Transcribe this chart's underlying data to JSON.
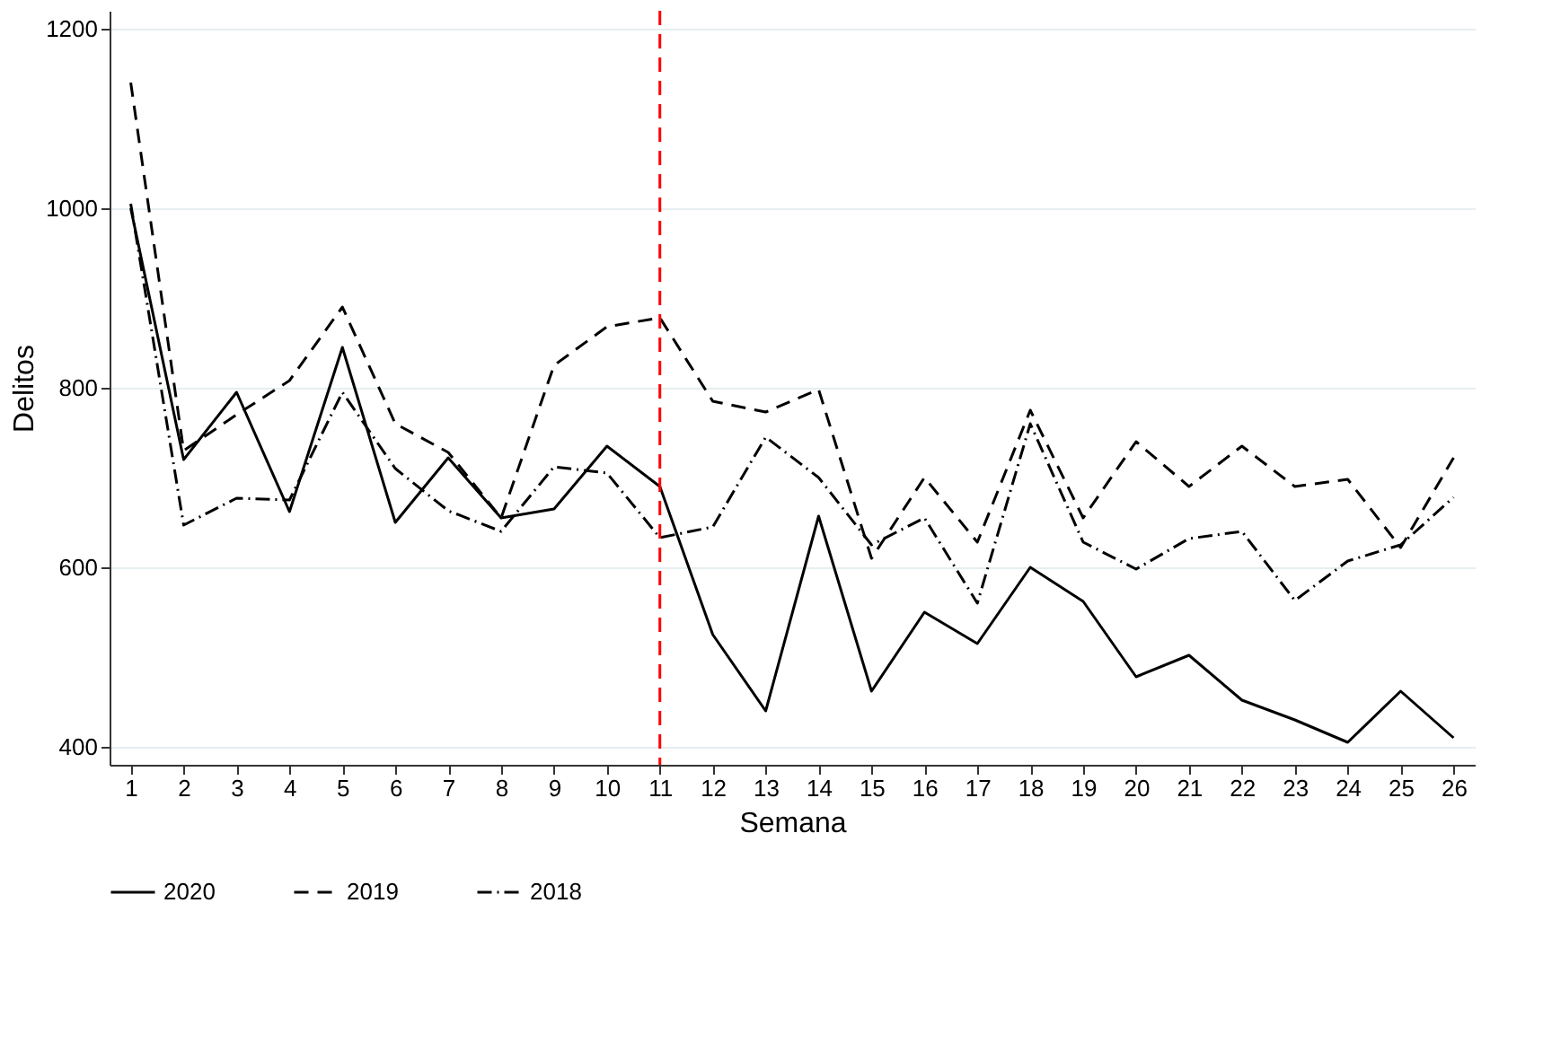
{
  "chart_data": {
    "type": "line",
    "xlabel": "Semana",
    "ylabel": "Delitos",
    "x": [
      1,
      2,
      3,
      4,
      5,
      6,
      7,
      8,
      9,
      10,
      11,
      12,
      13,
      14,
      15,
      16,
      17,
      18,
      19,
      20,
      21,
      22,
      23,
      24,
      25,
      26
    ],
    "xlim": [
      0.6,
      26.4
    ],
    "xticks": [
      1,
      2,
      3,
      4,
      5,
      6,
      7,
      8,
      9,
      10,
      11,
      12,
      13,
      14,
      15,
      16,
      17,
      18,
      19,
      20,
      21,
      22,
      23,
      24,
      25,
      26
    ],
    "ylim": [
      380,
      1220
    ],
    "yticks": [
      400,
      600,
      800,
      1000,
      1200
    ],
    "grid": "y",
    "legend": "bottom",
    "marker": "none",
    "series": [
      {
        "name": "2020",
        "color": "#000000",
        "line_style": "solid",
        "values": [
          1000,
          720,
          795,
          662,
          845,
          650,
          722,
          655,
          665,
          735,
          690,
          525,
          440,
          657,
          462,
          550,
          515,
          600,
          562,
          478,
          502,
          452,
          430,
          405,
          462,
          410
        ]
      },
      {
        "name": "2019",
        "color": "#000000",
        "line_style": "dashed",
        "values": [
          1140,
          730,
          770,
          808,
          890,
          760,
          728,
          655,
          825,
          868,
          878,
          785,
          773,
          798,
          610,
          700,
          628,
          775,
          655,
          740,
          690,
          735,
          690,
          698,
          622,
          722
        ]
      },
      {
        "name": "2018",
        "color": "#000000",
        "line_style": "dashdot",
        "values": [
          1005,
          647,
          677,
          675,
          795,
          710,
          663,
          640,
          712,
          705,
          633,
          645,
          745,
          700,
          625,
          655,
          560,
          760,
          628,
          598,
          632,
          640,
          563,
          607,
          625,
          678
        ]
      }
    ],
    "ref_lines": [
      {
        "axis": "x",
        "value": 11,
        "color": "#ff0000",
        "line_style": "dashed"
      }
    ]
  }
}
